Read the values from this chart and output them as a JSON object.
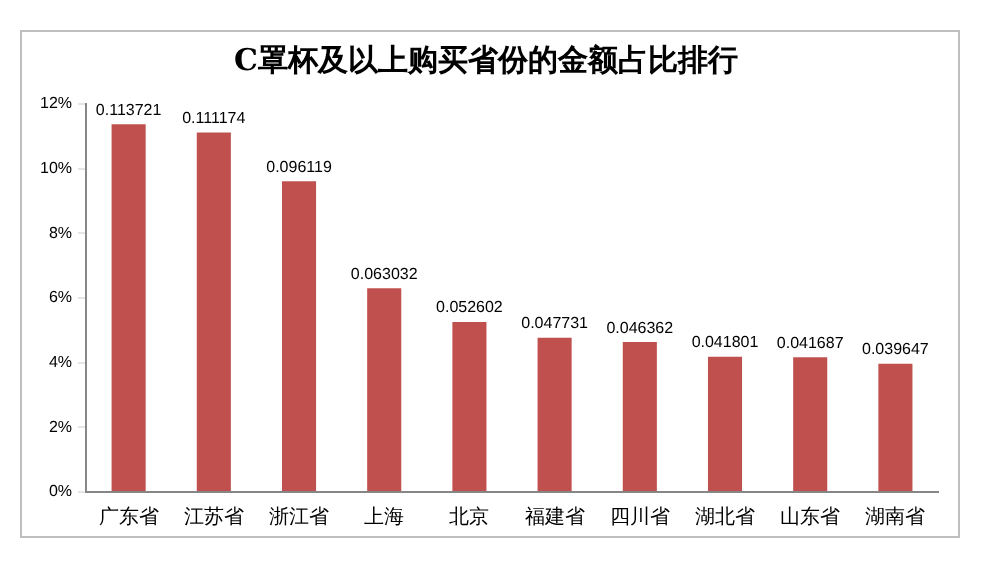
{
  "chart_data": {
    "type": "bar",
    "title": "C罩杯及以上购买省份的金额占比排行",
    "categories": [
      "广东省",
      "江苏省",
      "浙江省",
      "上海",
      "北京",
      "福建省",
      "四川省",
      "湖北省",
      "山东省",
      "湖南省"
    ],
    "values": [
      0.113721,
      0.111174,
      0.096119,
      0.063032,
      0.052602,
      0.047731,
      0.046362,
      0.041801,
      0.041687,
      0.039647
    ],
    "color": "#c0504d",
    "ylim": [
      0,
      0.12
    ],
    "yticks": [
      {
        "value": 0,
        "label": "0%"
      },
      {
        "value": 0.02,
        "label": "2%"
      },
      {
        "value": 0.04,
        "label": "4%"
      },
      {
        "value": 0.06,
        "label": "6%"
      },
      {
        "value": 0.08,
        "label": "8%"
      },
      {
        "value": 0.1,
        "label": "10%"
      },
      {
        "value": 0.12,
        "label": "12%"
      }
    ],
    "grid": false,
    "legend": false,
    "data_labels": true
  }
}
